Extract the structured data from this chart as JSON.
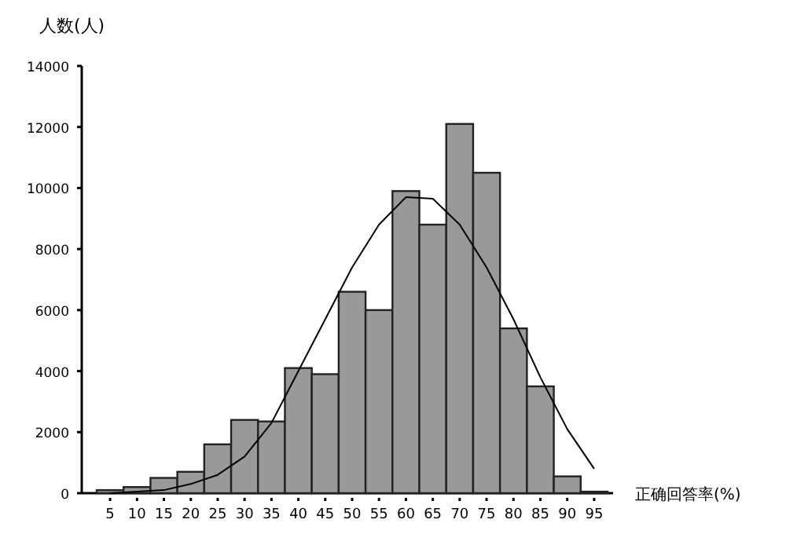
{
  "chart_data": {
    "type": "bar",
    "ylabel": "人数(人)",
    "xlabel": "正确回答率(%)",
    "categories": [
      "5",
      "10",
      "15",
      "20",
      "25",
      "30",
      "35",
      "40",
      "45",
      "50",
      "55",
      "60",
      "65",
      "70",
      "75",
      "80",
      "85",
      "90",
      "95"
    ],
    "ylim": [
      0,
      14000
    ],
    "yticks": [
      0,
      2000,
      4000,
      6000,
      8000,
      10000,
      12000,
      14000
    ],
    "series": [
      {
        "type": "bar",
        "color": "#999999",
        "values": [
          100,
          200,
          500,
          700,
          1600,
          2400,
          2350,
          4100,
          3900,
          6600,
          6000,
          9900,
          8800,
          12100,
          10500,
          5400,
          3500,
          550,
          50
        ]
      },
      {
        "type": "line",
        "color": "#000000",
        "values": [
          0,
          50,
          100,
          300,
          600,
          1200,
          2300,
          4000,
          5700,
          7400,
          8800,
          9700,
          9650,
          8800,
          7400,
          5700,
          3800,
          2100,
          800
        ]
      }
    ]
  }
}
